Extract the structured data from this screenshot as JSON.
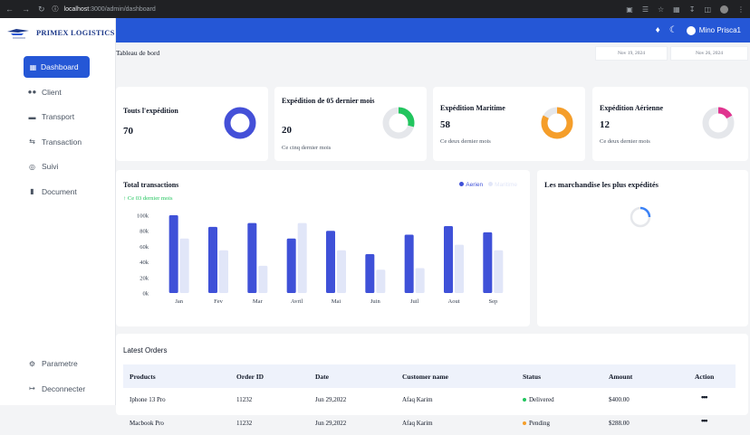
{
  "browser": {
    "host": "localhost",
    "path": ":3000/admin/dashboard"
  },
  "app": {
    "logo_text": "PRIMEX LOGISTICS",
    "brand_color": "#2557d6"
  },
  "sidebar": {
    "items": [
      {
        "label": "Dashboard",
        "icon": "grid-icon",
        "active": true
      },
      {
        "label": "Client",
        "icon": "users-icon"
      },
      {
        "label": "Transport",
        "icon": "truck-icon"
      },
      {
        "label": "Transaction",
        "icon": "swap-icon"
      },
      {
        "label": "Suivi",
        "icon": "globe-icon"
      },
      {
        "label": "Document",
        "icon": "file-icon"
      }
    ],
    "bottom": [
      {
        "label": "Parametre",
        "icon": "gear-icon"
      },
      {
        "label": "Deconnecter",
        "icon": "logout-icon"
      }
    ]
  },
  "topbar": {
    "user_name": "Mino Prisca1"
  },
  "page": {
    "title": "Tableau de bord",
    "date_from": "Nov 19, 2024",
    "date_to": "Nov 26, 2024"
  },
  "stats": [
    {
      "title": "Touts l'expédition",
      "value": "70",
      "sub": "",
      "ring_color": "#4450d8",
      "fraction": 1.0
    },
    {
      "title": "Expédition de 05 dernier mois",
      "value": "20",
      "sub": "Ce cinq dernier mois",
      "ring_color": "#22c55e",
      "fraction": 0.29
    },
    {
      "title": "Expédition Maritime",
      "value": "58",
      "sub": "Ce deux dernier mois",
      "ring_color": "#f59e2a",
      "fraction": 0.83
    },
    {
      "title": "Expédition Aérienne",
      "value": "12",
      "sub": "Ce deux dernier mois",
      "ring_color": "#e0338f",
      "fraction": 0.17
    }
  ],
  "chart_data": {
    "type": "bar",
    "title": "Total transactions",
    "subtitle": "Ce 03 dernier mois",
    "categories": [
      "Jan",
      "Fev",
      "Mar",
      "Avril",
      "Mai",
      "Juin",
      "Juil",
      "Aout",
      "Sep"
    ],
    "series": [
      {
        "name": "Aerien",
        "color": "#3f51d8",
        "values": [
          100000,
          85000,
          90000,
          70000,
          80000,
          50000,
          75000,
          86000,
          78000
        ]
      },
      {
        "name": "Maritime",
        "color": "#e1e6f8",
        "values": [
          70000,
          55000,
          35000,
          90000,
          55000,
          30000,
          32000,
          62000,
          55000
        ]
      }
    ],
    "ylim": [
      0,
      100000
    ],
    "yticks": [
      "0k",
      "20k",
      "40k",
      "60k",
      "80k",
      "100k"
    ],
    "grid": false,
    "legend": "top-right"
  },
  "top_goods": {
    "title": "Les marchandise les plus expédités"
  },
  "orders": {
    "title": "Latest Orders",
    "columns": [
      "Products",
      "Order ID",
      "Date",
      "Customer name",
      "Status",
      "Amount",
      "Action"
    ],
    "rows": [
      {
        "product": "Iphone 13 Pro",
        "order_id": "11232",
        "date": "Jun 29,2022",
        "customer": "Afaq Karim",
        "status": "Delivered",
        "status_color": "#22c55e",
        "amount": "$400.00",
        "action": "•••"
      },
      {
        "product": "Macbook Pro",
        "order_id": "11232",
        "date": "Jun 29,2022",
        "customer": "Afaq Karim",
        "status": "Pending",
        "status_color": "#f59e2a",
        "amount": "$288.00",
        "action": "•••"
      }
    ]
  }
}
